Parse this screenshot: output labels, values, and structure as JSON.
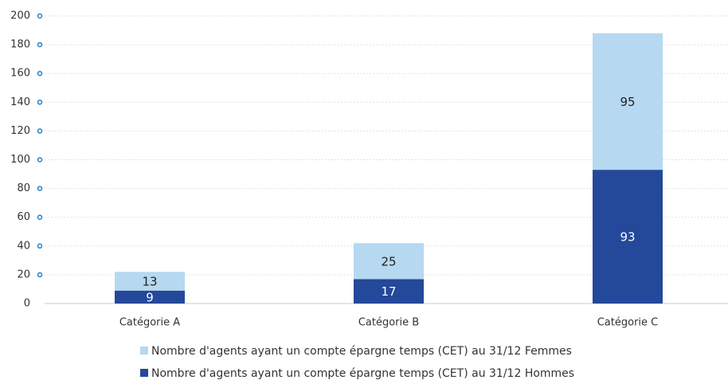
{
  "chart_data": {
    "type": "stacked_bar",
    "categories": [
      "Catégorie A",
      "Catégorie B",
      "Catégorie C"
    ],
    "series": [
      {
        "name": "Nombre d'agents ayant un compte épargne temps (CET) au 31/12 Hommes",
        "color": "#24489a",
        "values": [
          9,
          17,
          93
        ]
      },
      {
        "name": "Nombre d'agents ayant un compte épargne temps (CET) au 31/12 Femmes",
        "color": "#b6d8f0",
        "values": [
          13,
          25,
          95
        ]
      }
    ],
    "ylim": [
      0,
      200
    ],
    "yticks": [
      0,
      20,
      40,
      60,
      80,
      100,
      120,
      140,
      160,
      180,
      200
    ],
    "grid": true
  }
}
